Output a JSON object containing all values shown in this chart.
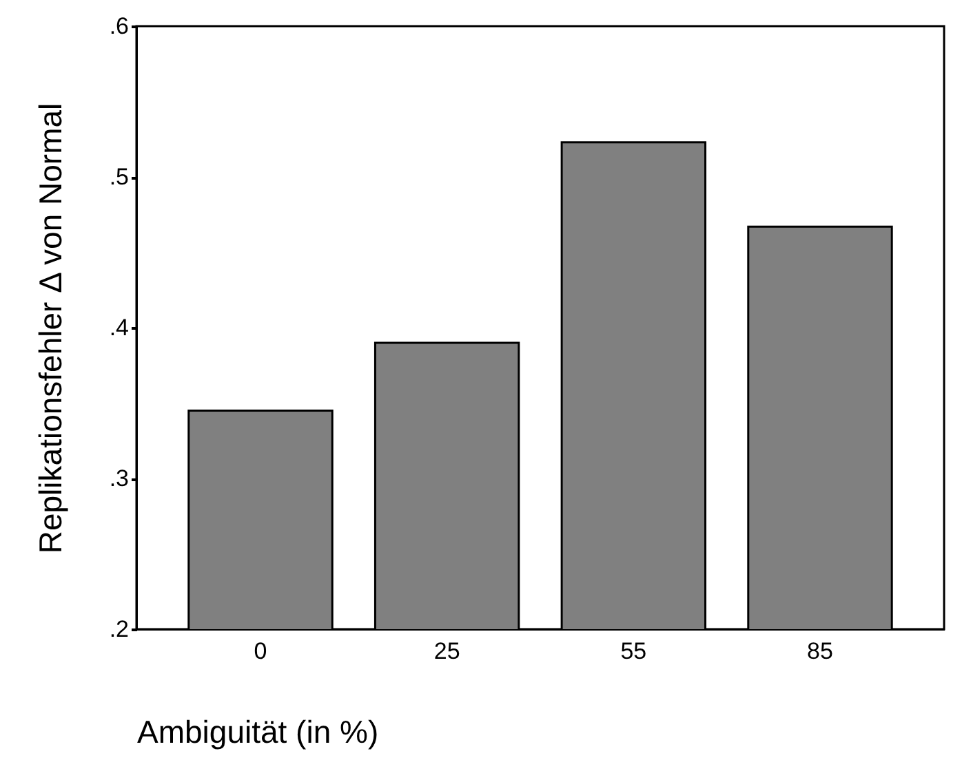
{
  "chart_data": {
    "type": "bar",
    "xlabel": "Ambiguität (in %)",
    "ylabel": "Replikationsfehler Δ von Normal",
    "categories": [
      "0",
      "25",
      "55",
      "85"
    ],
    "values": [
      0.345,
      0.39,
      0.523,
      0.467
    ],
    "color": "#808080",
    "ylim": [
      0.2,
      0.6
    ],
    "yticks": [
      {
        "value": 0.2,
        "label": ".2"
      },
      {
        "value": 0.3,
        "label": ".3"
      },
      {
        "value": 0.4,
        "label": ".4"
      },
      {
        "value": 0.5,
        "label": ".5"
      },
      {
        "value": 0.6,
        "label": ".6"
      }
    ],
    "grid": false
  }
}
